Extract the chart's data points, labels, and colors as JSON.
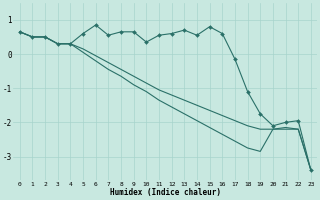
{
  "xlabel": "Humidex (Indice chaleur)",
  "background_color": "#c8e8e0",
  "line_color": "#2a7068",
  "grid_color": "#a8d4cc",
  "xlim": [
    -0.5,
    23.5
  ],
  "ylim": [
    -3.7,
    1.5
  ],
  "xticks": [
    0,
    1,
    2,
    3,
    4,
    5,
    6,
    7,
    8,
    9,
    10,
    11,
    12,
    13,
    14,
    15,
    16,
    17,
    18,
    19,
    20,
    21,
    22,
    23
  ],
  "yticks": [
    -3,
    -2,
    -1,
    0,
    1
  ],
  "line_markers": [
    0.65,
    0.5,
    0.5,
    0.3,
    0.3,
    0.6,
    0.85,
    0.55,
    0.65,
    0.65,
    0.35,
    0.55,
    0.6,
    0.7,
    0.55,
    0.8,
    0.6,
    -0.15,
    -1.1,
    -1.75,
    -2.1,
    -2.0,
    -1.95,
    -3.4
  ],
  "line_slope1": [
    0.65,
    0.5,
    0.5,
    0.3,
    0.3,
    0.15,
    -0.05,
    -0.25,
    -0.45,
    -0.65,
    -0.85,
    -1.05,
    -1.2,
    -1.35,
    -1.5,
    -1.65,
    -1.8,
    -1.95,
    -2.1,
    -2.2,
    -2.2,
    -2.2,
    -2.2,
    -3.4
  ],
  "line_slope2": [
    0.65,
    0.5,
    0.5,
    0.3,
    0.3,
    0.05,
    -0.2,
    -0.45,
    -0.65,
    -0.9,
    -1.1,
    -1.35,
    -1.55,
    -1.75,
    -1.95,
    -2.15,
    -2.35,
    -2.55,
    -2.75,
    -2.85,
    -2.2,
    -2.15,
    -2.2,
    -3.4
  ]
}
